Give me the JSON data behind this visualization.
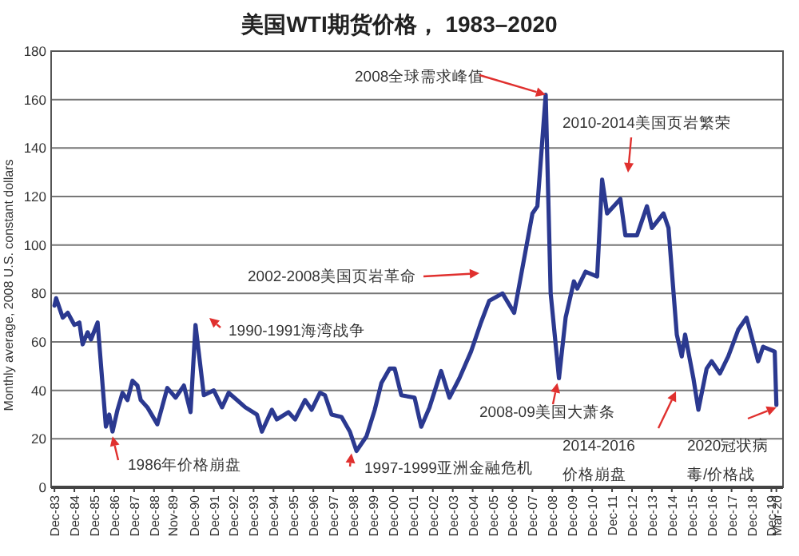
{
  "chart_data": {
    "type": "line",
    "title": "美国WTI期货价格， 1983–2020",
    "ylabel": "Monthly average, 2008 U.S. constant dollars",
    "x": [
      "1983-12",
      "1984-01",
      "1984-05",
      "1984-08",
      "1984-12",
      "1985-03",
      "1985-05",
      "1985-08",
      "1985-10",
      "1986-02",
      "1986-07",
      "1986-09",
      "1986-11",
      "1987-02",
      "1987-05",
      "1987-08",
      "1987-11",
      "1988-02",
      "1988-04",
      "1988-08",
      "1989-02",
      "1989-08",
      "1990-01",
      "1990-06",
      "1990-10",
      "1991-01",
      "1991-06",
      "1991-12",
      "1992-05",
      "1992-09",
      "1993-02",
      "1993-07",
      "1994-02",
      "1994-05",
      "1994-11",
      "1995-02",
      "1995-09",
      "1996-01",
      "1996-07",
      "1996-11",
      "1997-04",
      "1997-07",
      "1997-11",
      "1998-05",
      "1998-10",
      "1999-02",
      "1999-08",
      "2000-01",
      "2000-05",
      "2000-10",
      "2001-01",
      "2001-05",
      "2002-01",
      "2002-05",
      "2002-10",
      "2003-05",
      "2003-10",
      "2004-04",
      "2004-11",
      "2005-05",
      "2005-10",
      "2006-06",
      "2007-01",
      "2007-12",
      "2008-03",
      "2008-08",
      "2008-11",
      "2009-04",
      "2009-08",
      "2010-01",
      "2010-03",
      "2010-08",
      "2011-03",
      "2011-06",
      "2011-09",
      "2012-05",
      "2012-08",
      "2013-03",
      "2013-09",
      "2013-12",
      "2014-07",
      "2014-10",
      "2015-03",
      "2015-06",
      "2015-08",
      "2016-01",
      "2016-04",
      "2016-09",
      "2016-12",
      "2017-05",
      "2017-10",
      "2018-04",
      "2018-09",
      "2018-11",
      "2019-04",
      "2019-07",
      "2020-02",
      "2020-03"
    ],
    "series": [
      {
        "color": "#2b3990",
        "values": [
          75,
          78,
          70,
          72,
          67,
          68,
          59,
          64,
          61,
          68,
          25,
          30,
          23,
          32,
          39,
          36,
          44,
          42,
          36,
          33,
          26,
          41,
          37,
          42,
          31,
          67,
          38,
          40,
          33,
          39,
          36,
          33,
          30,
          23,
          32,
          28,
          31,
          28,
          36,
          32,
          39,
          38,
          30,
          29,
          23,
          15,
          21,
          32,
          43,
          49,
          49,
          38,
          37,
          25,
          33,
          48,
          37,
          45,
          56,
          68,
          77,
          80,
          72,
          113,
          116,
          162,
          80,
          45,
          70,
          85,
          82,
          89,
          87,
          127,
          113,
          119,
          104,
          104,
          116,
          107,
          113,
          107,
          63,
          54,
          63,
          45,
          32,
          49,
          52,
          47,
          54,
          65,
          70,
          65,
          52,
          58,
          56,
          34
        ]
      }
    ],
    "xlim": [
      "1983-10",
      "2020-07"
    ],
    "xticks": [
      {
        "value": "1983-12",
        "label": "Dec-83"
      },
      {
        "value": "1984-12",
        "label": "Dec-84"
      },
      {
        "value": "1985-12",
        "label": "Dec-85"
      },
      {
        "value": "1986-12",
        "label": "Dec-86"
      },
      {
        "value": "1987-12",
        "label": "Dec-87"
      },
      {
        "value": "1988-12",
        "label": "Dec-88"
      },
      {
        "value": "1989-11",
        "label": "Nov-89"
      },
      {
        "value": "1990-12",
        "label": "Dec-90"
      },
      {
        "value": "1991-12",
        "label": "Dec-91"
      },
      {
        "value": "1992-12",
        "label": "Dec-92"
      },
      {
        "value": "1993-12",
        "label": "Dec-93"
      },
      {
        "value": "1994-12",
        "label": "Dec-94"
      },
      {
        "value": "1995-12",
        "label": "Dec-95"
      },
      {
        "value": "1996-12",
        "label": "Dec-96"
      },
      {
        "value": "1997-12",
        "label": "Dec-97"
      },
      {
        "value": "1998-12",
        "label": "Dec-98"
      },
      {
        "value": "1999-12",
        "label": "Dec-99"
      },
      {
        "value": "2000-12",
        "label": "Dec-00"
      },
      {
        "value": "2001-12",
        "label": "Dec-01"
      },
      {
        "value": "2002-12",
        "label": "Dec-02"
      },
      {
        "value": "2003-12",
        "label": "Dec-03"
      },
      {
        "value": "2004-12",
        "label": "Dec-04"
      },
      {
        "value": "2005-12",
        "label": "Dec-05"
      },
      {
        "value": "2006-12",
        "label": "Dec-06"
      },
      {
        "value": "2007-12",
        "label": "Dec-07"
      },
      {
        "value": "2008-12",
        "label": "Dec-08"
      },
      {
        "value": "2009-12",
        "label": "Dec-09"
      },
      {
        "value": "2010-12",
        "label": "Dec-10"
      },
      {
        "value": "2011-12",
        "label": "Dec-11"
      },
      {
        "value": "2012-12",
        "label": "Dec-12"
      },
      {
        "value": "2013-12",
        "label": "Dec-13"
      },
      {
        "value": "2014-12",
        "label": "Dec-14"
      },
      {
        "value": "2015-12",
        "label": "Dec-15"
      },
      {
        "value": "2016-12",
        "label": "Dec-16"
      },
      {
        "value": "2017-12",
        "label": "Dec-17"
      },
      {
        "value": "2018-12",
        "label": "Dec-18"
      },
      {
        "value": "2019-12",
        "label": "Dec-19"
      },
      {
        "value": "2020-03",
        "label": "Mar-20"
      }
    ],
    "ylim": [
      0,
      180
    ],
    "yticks": [
      0,
      20,
      40,
      60,
      80,
      100,
      120,
      140,
      160,
      180
    ],
    "grid": "y",
    "marker": "none",
    "line_style": "solid",
    "annotations": [
      {
        "text": "2008全球需求峰值",
        "x": "2008-08",
        "y": 162
      },
      "2010-2014美国页岩繁荣",
      "2002-2008美国页岩革命",
      "1990-1991海湾战争",
      {
        "text": "1986年价格崩盘",
        "x": "1986-11",
        "y": 21
      },
      {
        "text": "1997-1999亚洲金融危机",
        "x": "1998-11",
        "y": 14
      },
      {
        "text": "2008-09美国大萧条",
        "x": "2009-03",
        "y": 43
      },
      "2014-2016价格崩盘",
      {
        "text": "2020冠状病毒/价格战",
        "x": "2020-03",
        "y": 33
      }
    ]
  }
}
